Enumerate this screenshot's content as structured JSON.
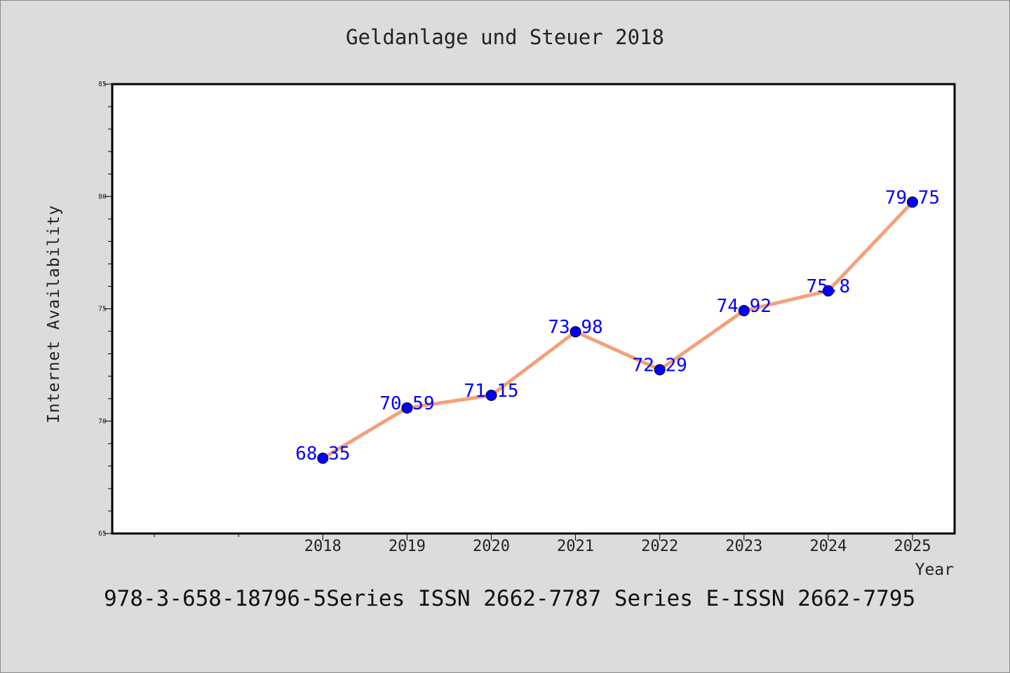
{
  "figure": {
    "footer": "978-3-658-18796-5Series ISSN 2662-7787 Series E-ISSN 2662-7795"
  },
  "colors": {
    "background": "#dcdcdc",
    "plot_background": "#ffffff",
    "line": "#f4a07a",
    "marker": "#0000ff",
    "data_label": "#0000ff"
  },
  "chart_data": {
    "type": "line",
    "title": "Geldanlage und Steuer 2018",
    "xlabel": "Year",
    "ylabel": "Internet Availability",
    "x": [
      "2018",
      "2019",
      "2020",
      "2021",
      "2022",
      "2023",
      "2024",
      "2025"
    ],
    "x_positions": [
      2018,
      2019,
      2020,
      2021,
      2022,
      2023,
      2024,
      2025
    ],
    "xlim": [
      2015.5,
      2025.5
    ],
    "extra_minor_xticks": [
      2016,
      2017
    ],
    "values": [
      68.35,
      70.59,
      71.15,
      73.98,
      72.29,
      74.92,
      75.8,
      79.75
    ],
    "data_labels": [
      "68.35",
      "70.59",
      "71.15",
      "73.98",
      "72.29",
      "74.92",
      "75.8",
      "79.75"
    ],
    "ylim": [
      65,
      85
    ],
    "yticks": [
      "65",
      "70",
      "75",
      "80",
      "85"
    ],
    "ytick_values": [
      65,
      70,
      75,
      80,
      85
    ],
    "grid": false,
    "legend": "none",
    "markers": true
  }
}
